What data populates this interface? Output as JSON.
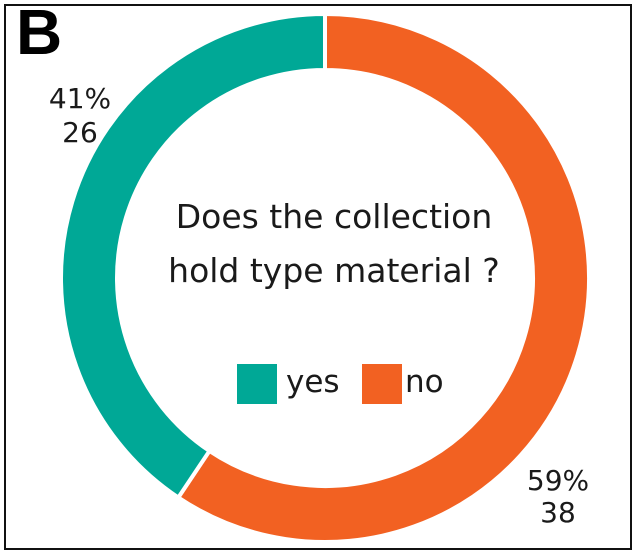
{
  "panel_label": "B",
  "chart_data": {
    "type": "pie",
    "style": "donut",
    "title": "Does the collection hold type material ?",
    "title_lines": [
      "Does the collection",
      "hold type material ?"
    ],
    "categories": [
      "yes",
      "no"
    ],
    "values": [
      26,
      38
    ],
    "percentages": [
      "41%",
      "59%"
    ],
    "colors": [
      "#00A896",
      "#F26122"
    ],
    "legend": {
      "placement": "center",
      "entries": [
        "yes",
        "no"
      ]
    },
    "start_angle": "top",
    "direction": "clockwise-no-first",
    "labels": {
      "yes": {
        "percent": "41%",
        "count": "26"
      },
      "no": {
        "percent": "59%",
        "count": "38"
      }
    }
  }
}
